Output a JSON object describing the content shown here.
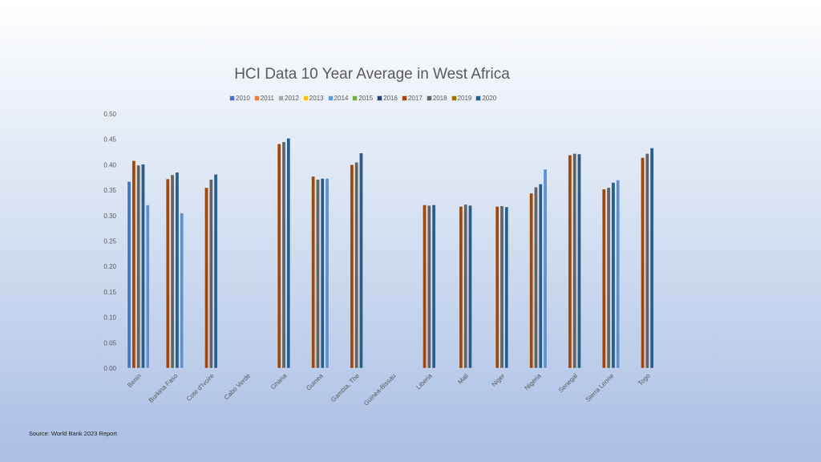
{
  "source_note": "Source: World Bank 2023 Report",
  "chart_data": {
    "type": "bar",
    "title": "HCI Data 10 Year Average in West Africa",
    "xlabel": "",
    "ylabel": "",
    "ylim": [
      0,
      0.5
    ],
    "yticks": [
      "0.00",
      "0.05",
      "0.10",
      "0.15",
      "0.20",
      "0.25",
      "0.30",
      "0.35",
      "0.40",
      "0.45",
      "0.50"
    ],
    "grid": false,
    "legend_position": "top",
    "categories": [
      "Benin",
      "Burkina Faso",
      "Cote d'Ivoire",
      "Cabo Verde",
      "Ghana",
      "Guinea",
      "Gambia, The",
      "Guinea-Bissau",
      "Liberia",
      "Mali",
      "Niger",
      "Nigeria",
      "Senegal",
      "Sierra Leone",
      "Togo"
    ],
    "series": [
      {
        "name": "2010",
        "color": "#4472c4",
        "values": [
          0.367,
          null,
          null,
          null,
          null,
          null,
          null,
          null,
          null,
          null,
          null,
          null,
          null,
          null,
          null
        ]
      },
      {
        "name": "2011",
        "color": "#ed7d31",
        "values": [
          null,
          null,
          null,
          null,
          null,
          null,
          null,
          null,
          null,
          null,
          null,
          null,
          null,
          null,
          null
        ]
      },
      {
        "name": "2012",
        "color": "#a5a5a5",
        "values": [
          null,
          null,
          null,
          null,
          null,
          null,
          null,
          null,
          null,
          null,
          null,
          null,
          null,
          null,
          null
        ]
      },
      {
        "name": "2013",
        "color": "#ffc000",
        "values": [
          null,
          null,
          null,
          null,
          null,
          null,
          null,
          null,
          null,
          null,
          null,
          null,
          null,
          null,
          null
        ]
      },
      {
        "name": "2014",
        "color": "#5b9bd5",
        "values": [
          null,
          null,
          null,
          null,
          null,
          null,
          null,
          null,
          null,
          null,
          null,
          null,
          null,
          null,
          null
        ]
      },
      {
        "name": "2015",
        "color": "#70ad47",
        "values": [
          null,
          null,
          null,
          null,
          null,
          null,
          null,
          null,
          null,
          null,
          null,
          null,
          null,
          null,
          null
        ]
      },
      {
        "name": "2016",
        "color": "#264478",
        "values": [
          null,
          null,
          null,
          null,
          null,
          null,
          null,
          null,
          null,
          null,
          null,
          null,
          null,
          null,
          null
        ]
      },
      {
        "name": "2017",
        "color": "#9e480e",
        "values": [
          0.408,
          0.372,
          0.355,
          null,
          0.441,
          0.377,
          0.4,
          null,
          0.321,
          0.318,
          0.318,
          0.344,
          0.419,
          0.352,
          0.414
        ]
      },
      {
        "name": "2018",
        "color": "#636363",
        "values": [
          0.399,
          0.38,
          0.371,
          null,
          0.445,
          0.371,
          0.405,
          null,
          0.32,
          0.322,
          0.319,
          0.356,
          0.422,
          0.355,
          0.422
        ]
      },
      {
        "name": "2019",
        "color": "#997300",
        "values": [
          null,
          null,
          null,
          null,
          null,
          null,
          null,
          null,
          null,
          null,
          null,
          null,
          null,
          null,
          null
        ]
      },
      {
        "name": "2020",
        "color": "#255e91",
        "values": [
          0.401,
          0.385,
          0.381,
          null,
          0.452,
          0.373,
          0.423,
          null,
          0.321,
          0.32,
          0.317,
          0.362,
          0.421,
          0.365,
          0.433
        ]
      },
      {
        "name": "",
        "color": "#5b8fd6",
        "values": [
          0.321,
          0.305,
          null,
          null,
          null,
          0.373,
          null,
          null,
          null,
          null,
          null,
          0.391,
          null,
          0.37,
          null
        ]
      }
    ]
  }
}
